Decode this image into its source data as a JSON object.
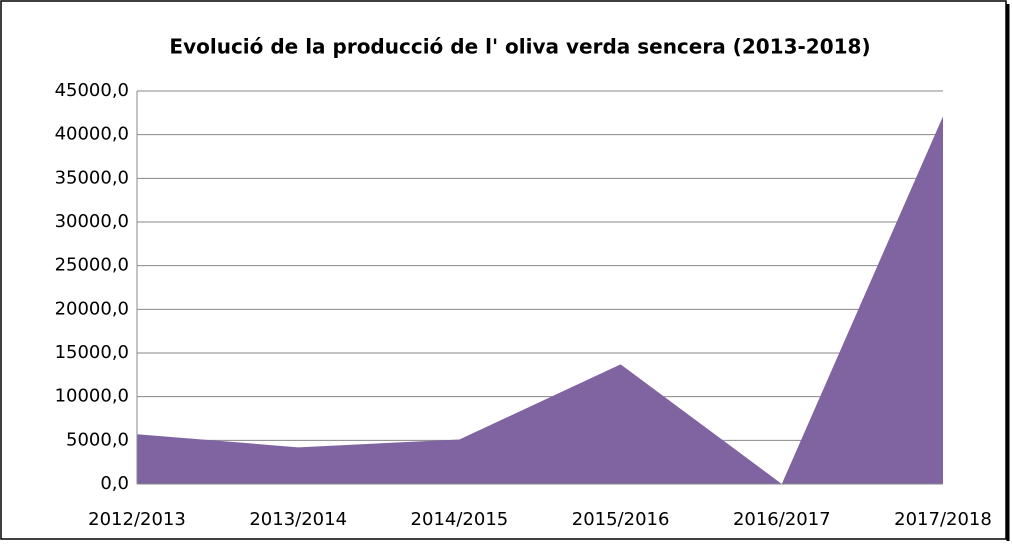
{
  "chart_data": {
    "type": "area",
    "title": "Evolució de la producció de l' oliva verda sencera (2013-2018)",
    "categories": [
      "2012/2013",
      "2013/2014",
      "2014/2015",
      "2015/2016",
      "2016/2017",
      "2017/2018"
    ],
    "values": [
      5700,
      4200,
      5100,
      13700,
      0,
      42100
    ],
    "color": "#8064a2",
    "ylim": [
      0,
      45000
    ],
    "yticks": [
      {
        "value": 0,
        "label": "0,0"
      },
      {
        "value": 5000,
        "label": "5000,0"
      },
      {
        "value": 10000,
        "label": "10000,0"
      },
      {
        "value": 15000,
        "label": "15000,0"
      },
      {
        "value": 20000,
        "label": "20000,0"
      },
      {
        "value": 25000,
        "label": "25000,0"
      },
      {
        "value": 30000,
        "label": "30000,0"
      },
      {
        "value": 35000,
        "label": "35000,0"
      },
      {
        "value": 40000,
        "label": "40000,0"
      },
      {
        "value": 45000,
        "label": "45000,0"
      }
    ],
    "grid": true
  }
}
